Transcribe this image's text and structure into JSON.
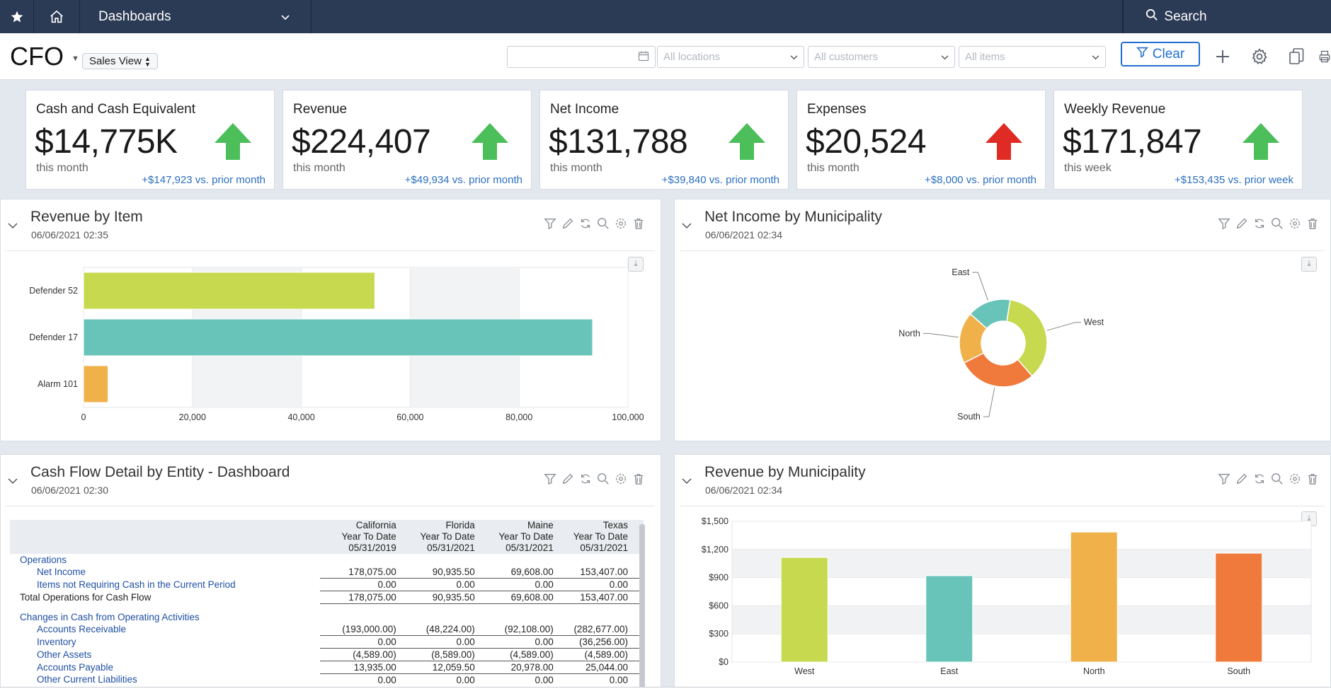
{
  "topnav": {
    "dashboards_label": "Dashboards",
    "search_label": "Search"
  },
  "header": {
    "title": "CFO",
    "view_selector": "Sales View",
    "filters": {
      "date_value": "",
      "locations_placeholder": "All locations",
      "customers_placeholder": "All customers",
      "items_placeholder": "All items"
    },
    "clear_label": "Clear"
  },
  "kpis": [
    {
      "title": "Cash and Cash Equivalent",
      "value": "$14,775K",
      "period": "this month",
      "delta": "+$147,923 vs. prior month",
      "trend": "up",
      "trend_color": "#4cbe5a"
    },
    {
      "title": "Revenue",
      "value": "$224,407",
      "period": "this month",
      "delta": "+$49,934 vs. prior month",
      "trend": "up",
      "trend_color": "#4cbe5a"
    },
    {
      "title": "Net Income",
      "value": "$131,788",
      "period": "this month",
      "delta": "+$39,840 vs. prior month",
      "trend": "up",
      "trend_color": "#4cbe5a"
    },
    {
      "title": "Expenses",
      "value": "$20,524",
      "period": "this month",
      "delta": "+$8,000 vs. prior month",
      "trend": "up",
      "trend_color": "#e02a24"
    },
    {
      "title": "Weekly Revenue",
      "value": "$171,847",
      "period": "this week",
      "delta": "+$153,435 vs. prior week",
      "trend": "up",
      "trend_color": "#4cbe5a"
    }
  ],
  "panels": {
    "revenue_by_item": {
      "title": "Revenue by Item",
      "date": "06/06/2021 02:35"
    },
    "net_income_by_municipality": {
      "title": "Net Income by Municipality",
      "date": "06/06/2021 02:34"
    },
    "cash_flow": {
      "title": "Cash Flow Detail by Entity - Dashboard",
      "date": "06/06/2021 02:30"
    },
    "revenue_by_municipality": {
      "title": "Revenue by Municipality",
      "date": "06/06/2021 02:34"
    }
  },
  "chart_data": [
    {
      "type": "bar",
      "orientation": "horizontal",
      "categories": [
        "Defender 52",
        "Defender 17",
        "Alarm 101"
      ],
      "values": [
        53500,
        93500,
        4500
      ],
      "colors": [
        "#c6d94f",
        "#68c3b8",
        "#f0b04a"
      ],
      "xlim": [
        0,
        100000
      ],
      "xticks": [
        "0",
        "20,000",
        "40,000",
        "60,000",
        "80,000",
        "100,000"
      ],
      "grid": true
    },
    {
      "type": "pie",
      "style": "donut",
      "labels": [
        "West",
        "South",
        "North",
        "East"
      ],
      "values": [
        36,
        29,
        19,
        16
      ],
      "colors": [
        "#c6d94f",
        "#ef7a3c",
        "#f0b04a",
        "#68c3b8"
      ]
    },
    {
      "type": "table",
      "columns": [
        {
          "name": "California",
          "line2": "Year To Date",
          "line3": "05/31/2019"
        },
        {
          "name": "Florida",
          "line2": "Year To Date",
          "line3": "05/31/2021"
        },
        {
          "name": "Maine",
          "line2": "Year To Date",
          "line3": "05/31/2021"
        },
        {
          "name": "Texas",
          "line2": "Year To Date",
          "line3": "05/31/2021"
        }
      ],
      "rows": [
        {
          "label": "Operations",
          "kind": "sec",
          "values": [
            "",
            "",
            "",
            ""
          ]
        },
        {
          "label": "Net Income",
          "kind": "sub",
          "values": [
            "178,075.00",
            "90,935.50",
            "69,608.00",
            "153,407.00"
          ]
        },
        {
          "label": "Items not Requiring Cash in the Current Period",
          "kind": "sub",
          "values": [
            "0.00",
            "0.00",
            "0.00",
            "0.00"
          ]
        },
        {
          "label": "Total Operations for Cash Flow",
          "kind": "tot",
          "values": [
            "178,075.00",
            "90,935.50",
            "69,608.00",
            "153,407.00"
          ]
        },
        {
          "label": "Changes in Cash from Operating Activities",
          "kind": "sec",
          "values": [
            "",
            "",
            "",
            ""
          ]
        },
        {
          "label": "Accounts Receivable",
          "kind": "sub",
          "values": [
            "(193,000.00)",
            "(48,224.00)",
            "(92,108.00)",
            "(282,677.00)"
          ]
        },
        {
          "label": "Inventory",
          "kind": "sub",
          "values": [
            "0.00",
            "0.00",
            "0.00",
            "(36,256.00)"
          ]
        },
        {
          "label": "Other Assets",
          "kind": "sub",
          "values": [
            "(4,589.00)",
            "(8,589.00)",
            "(4,589.00)",
            "(4,589.00)"
          ]
        },
        {
          "label": "Accounts Payable",
          "kind": "sub",
          "values": [
            "13,935.00",
            "12,059.50",
            "20,978.00",
            "25,044.00"
          ]
        },
        {
          "label": "Other Current Liabilities",
          "kind": "sub",
          "values": [
            "0.00",
            "0.00",
            "0.00",
            "0.00"
          ]
        }
      ]
    },
    {
      "type": "bar",
      "categories": [
        "West",
        "East",
        "North",
        "South"
      ],
      "values": [
        1115,
        920,
        1385,
        1160
      ],
      "colors": [
        "#c6d94f",
        "#68c3b8",
        "#f0b04a",
        "#ef7a3c"
      ],
      "ylim": [
        0,
        1500
      ],
      "yticks": [
        "$0",
        "$300",
        "$600",
        "$900",
        "$1,200",
        "$1,500"
      ],
      "grid": true
    }
  ]
}
